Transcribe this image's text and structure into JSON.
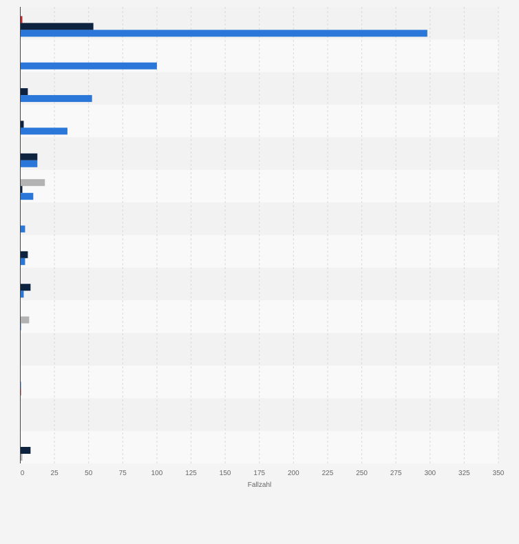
{
  "chart_data": {
    "type": "bar",
    "orientation": "horizontal",
    "xlabel": "Fallzahl",
    "xlim": [
      0,
      350
    ],
    "x_ticks": [
      0,
      25,
      50,
      75,
      100,
      125,
      150,
      175,
      200,
      225,
      250,
      275,
      300,
      325,
      350
    ],
    "grid": true,
    "series_colors": [
      "#b3b3b3",
      "#c0272d",
      "#0d2340",
      "#2a77d9"
    ],
    "rows": [
      {
        "bars": [
          {
            "series": 1,
            "value": 1.5
          },
          {
            "series": 2,
            "value": 53.5
          },
          {
            "series": 3,
            "value": 298
          }
        ]
      },
      {
        "bars": [
          {
            "series": 3,
            "value": 100
          }
        ]
      },
      {
        "bars": [
          {
            "series": 2,
            "value": 5.5
          },
          {
            "series": 3,
            "value": 52.5
          }
        ]
      },
      {
        "bars": [
          {
            "series": 2,
            "value": 2.5
          },
          {
            "series": 3,
            "value": 34.5
          }
        ]
      },
      {
        "bars": [
          {
            "series": 2,
            "value": 12.5
          },
          {
            "series": 3,
            "value": 12.5
          }
        ]
      },
      {
        "bars": [
          {
            "series": 0,
            "value": 18
          },
          {
            "series": 2,
            "value": 1.5
          },
          {
            "series": 3,
            "value": 9.5
          }
        ]
      },
      {
        "bars": [
          {
            "series": 3,
            "value": 3.5
          }
        ]
      },
      {
        "bars": [
          {
            "series": 2,
            "value": 5.5
          },
          {
            "series": 3,
            "value": 3.5
          }
        ]
      },
      {
        "bars": [
          {
            "series": 2,
            "value": 7.5
          },
          {
            "series": 3,
            "value": 2.5
          }
        ]
      },
      {
        "bars": [
          {
            "series": 0,
            "value": 6.5
          },
          {
            "series": 3,
            "value": 0.5
          }
        ]
      },
      {
        "bars": []
      },
      {
        "bars": [
          {
            "series": 3,
            "value": 0.5
          },
          {
            "series": 1,
            "value": 0.5
          }
        ]
      },
      {
        "bars": []
      },
      {
        "bars": [
          {
            "series": 2,
            "value": 7.5
          },
          {
            "series": 0,
            "value": 1.5
          }
        ]
      }
    ]
  }
}
